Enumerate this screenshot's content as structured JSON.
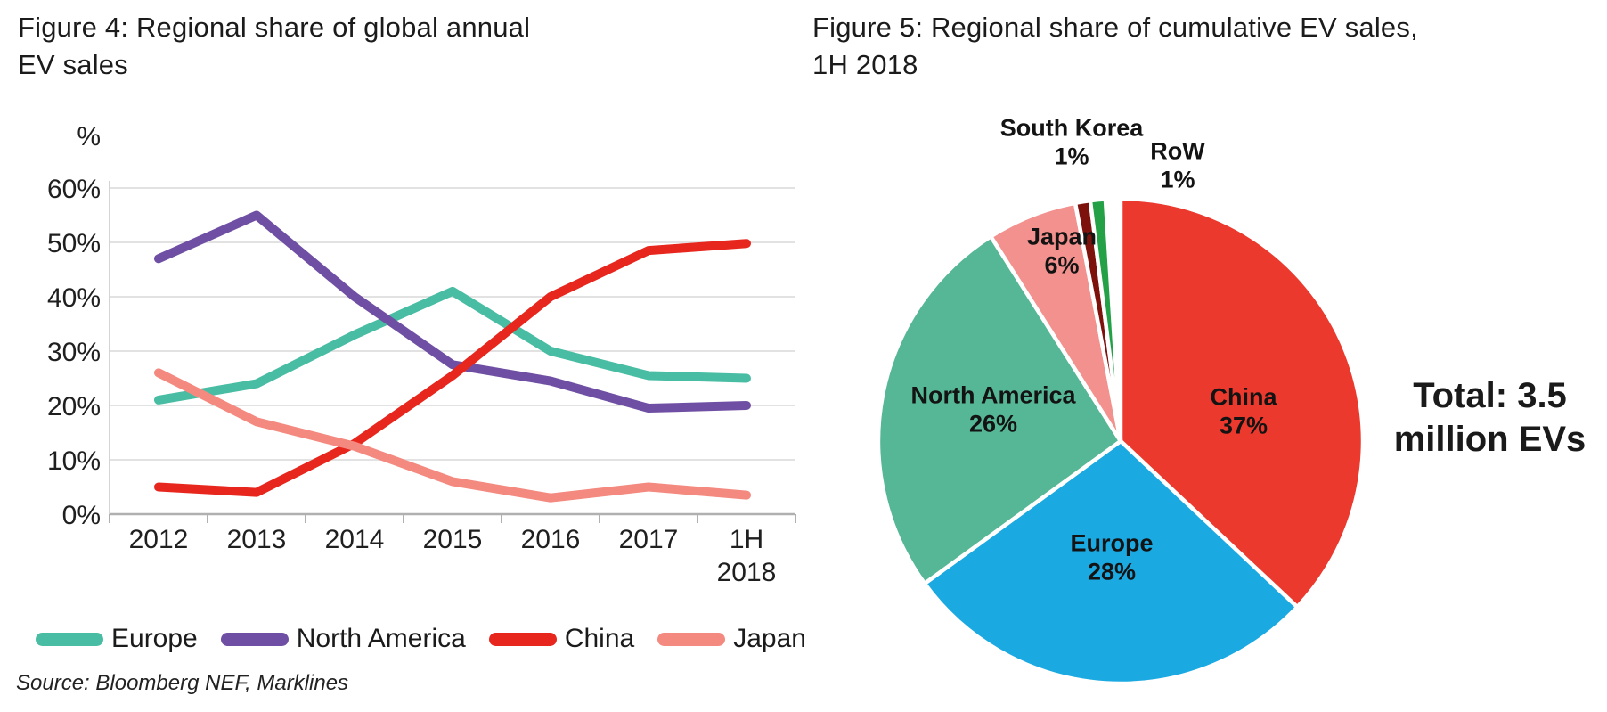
{
  "meta": {
    "source": "Source: Bloomberg NEF, Marklines"
  },
  "chart_data": [
    {
      "id": "annual-ev-sales-share",
      "type": "line",
      "title": "Figure 4: Regional share of global annual\nEV sales",
      "unit_label": "%",
      "categories": [
        "2012",
        "2013",
        "2014",
        "2015",
        "2016",
        "2017",
        "1H\n2018"
      ],
      "yticks": [
        0,
        10,
        20,
        30,
        40,
        50,
        60
      ],
      "ytick_labels": [
        "0%",
        "10%",
        "20%",
        "30%",
        "40%",
        "50%",
        "60%"
      ],
      "ylim": [
        0,
        60
      ],
      "grid": true,
      "legend_position": "bottom",
      "series": [
        {
          "name": "Europe",
          "color": "#48bda3",
          "values": [
            21,
            24,
            33,
            41,
            30,
            25.5,
            25
          ]
        },
        {
          "name": "North America",
          "color": "#6f4fa3",
          "values": [
            47,
            55,
            40,
            27.5,
            24.5,
            19.5,
            20
          ]
        },
        {
          "name": "China",
          "color": "#e7261d",
          "values": [
            5,
            4,
            13,
            25.5,
            40,
            48.5,
            49.8
          ]
        },
        {
          "name": "Japan",
          "color": "#f4897f",
          "values": [
            26,
            17,
            12.5,
            6,
            3,
            5,
            3.5
          ]
        }
      ]
    },
    {
      "id": "cumulative-ev-sales-share",
      "type": "pie",
      "title": "Figure 5: Regional share of cumulative EV sales,\n1H 2018",
      "annotation": "Total: 3.5 million EVs",
      "start_angle_deg": 0,
      "direction": "clockwise",
      "slices": [
        {
          "name": "China",
          "pct": 37,
          "color": "#eb392d",
          "label_placement": "inside",
          "label_offset": [
            138,
            -33
          ]
        },
        {
          "name": "Europe",
          "pct": 28,
          "color": "#1ba9e1",
          "label_placement": "inside",
          "label_offset": [
            -10,
            131
          ]
        },
        {
          "name": "North America",
          "pct": 26,
          "color": "#55b795",
          "label_placement": "inside",
          "label_offset": [
            -143,
            -35
          ]
        },
        {
          "name": "Japan",
          "pct": 6,
          "color": "#f2918d",
          "label_placement": "inside",
          "label_offset": [
            -66,
            -213
          ]
        },
        {
          "name": "South Korea",
          "pct": 1,
          "color": "#7d120d",
          "label_placement": "outside",
          "label_offset": [
            -55,
            -335
          ]
        },
        {
          "name": "RoW",
          "pct": 1,
          "color": "#24a147",
          "label_placement": "outside",
          "label_offset": [
            64,
            -309
          ]
        }
      ]
    }
  ]
}
